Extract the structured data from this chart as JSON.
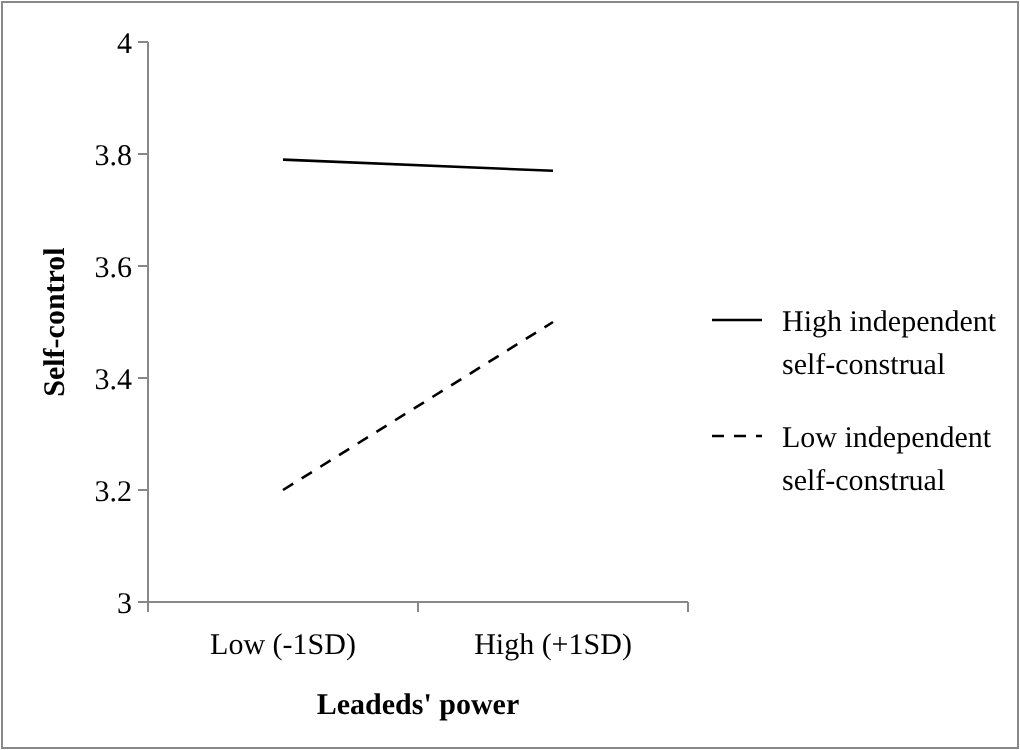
{
  "chart_data": {
    "type": "line",
    "xlabel": "Leadeds' power",
    "ylabel": "Self-control",
    "categories": [
      "Low (-1SD)",
      "High (+1SD)"
    ],
    "series": [
      {
        "name": "High independent self-construal",
        "color": "#000000",
        "values": [
          3.79,
          3.77
        ],
        "line_style": "solid"
      },
      {
        "name": "Low independent self-construal",
        "color": "#000000",
        "values": [
          3.2,
          3.5
        ],
        "line_style": "dashed"
      }
    ],
    "ylim": [
      3,
      4
    ],
    "yticks": [
      3,
      3.2,
      3.4,
      3.6,
      3.8,
      4
    ],
    "grid": false,
    "legend": "right",
    "marker": "none"
  }
}
